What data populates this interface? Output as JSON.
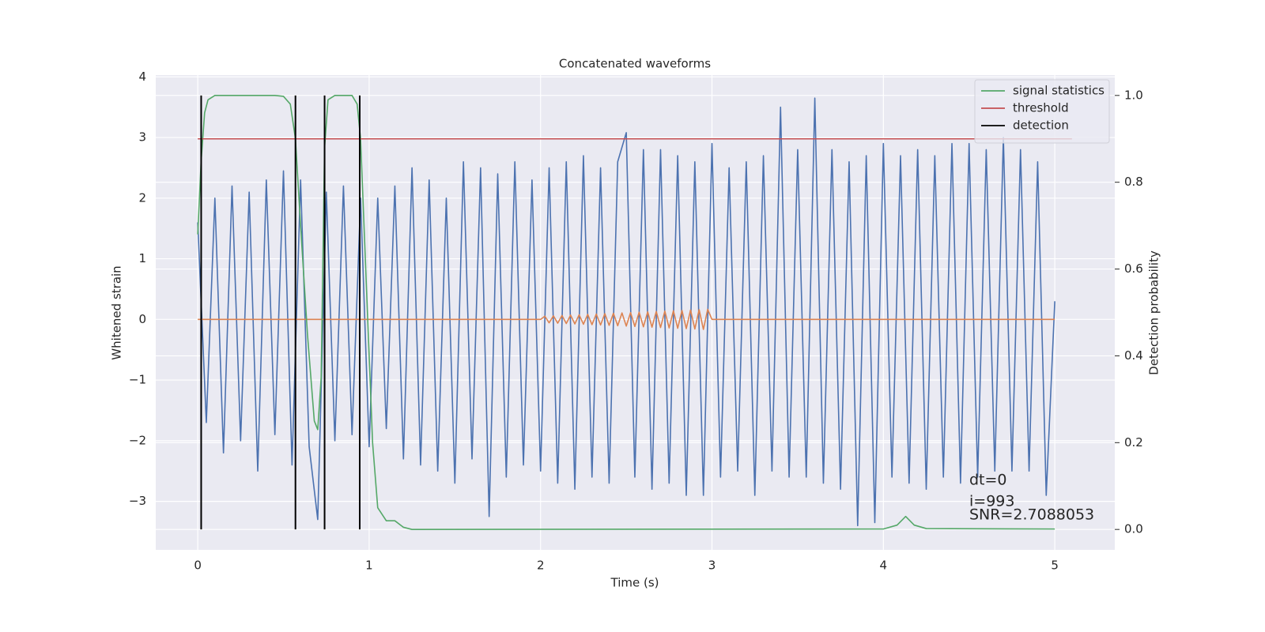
{
  "chart_data": {
    "type": "line",
    "title": "Concatenated waveforms",
    "xlabel": "Time (s)",
    "ylabel": "Whitened strain",
    "y2label": "Detection probability",
    "xlim": [
      -0.245,
      5.35
    ],
    "ylim": [
      -3.8,
      4.03
    ],
    "y2lim": [
      -0.047,
      1.047
    ],
    "xticks": [
      0,
      1,
      2,
      3,
      4,
      5
    ],
    "yticks": [
      {
        "value": -3,
        "label": "−3"
      },
      {
        "value": -2,
        "label": "−2"
      },
      {
        "value": -1,
        "label": "−1"
      },
      0,
      1,
      2,
      3,
      4
    ],
    "y2ticks": [
      {
        "value": 0,
        "label": "0.0"
      },
      0.2,
      0.4,
      0.6,
      0.8,
      {
        "value": 1,
        "label": "1.0"
      }
    ],
    "grid": true,
    "legend": "upper right",
    "annotations": [
      "dt=0",
      "i=993",
      "SNR=2.7088053"
    ],
    "series": [
      {
        "color": "#4c72b0",
        "x": [
          0,
          0.05,
          0.1,
          0.15,
          0.2,
          0.25,
          0.3,
          0.35,
          0.4,
          0.45,
          0.5,
          0.55,
          0.6,
          0.65,
          0.7,
          0.75,
          0.8,
          0.85,
          0.9,
          0.95,
          1.0,
          1.05,
          1.1,
          1.15,
          1.2,
          1.25,
          1.3,
          1.35,
          1.4,
          1.45,
          1.5,
          1.55,
          1.6,
          1.65,
          1.7,
          1.75,
          1.8,
          1.85,
          1.9,
          1.95,
          2.0,
          2.05,
          2.1,
          2.15,
          2.2,
          2.25,
          2.3,
          2.35,
          2.4,
          2.45,
          2.5,
          2.55,
          2.6,
          2.65,
          2.7,
          2.75,
          2.8,
          2.85,
          2.9,
          2.95,
          3.0,
          3.05,
          3.1,
          3.15,
          3.2,
          3.25,
          3.3,
          3.35,
          3.4,
          3.45,
          3.5,
          3.55,
          3.6,
          3.65,
          3.7,
          3.75,
          3.8,
          3.85,
          3.9,
          3.95,
          4.0,
          4.05,
          4.1,
          4.15,
          4.2,
          4.25,
          4.3,
          4.35,
          4.4,
          4.45,
          4.5,
          4.55,
          4.6,
          4.65,
          4.7,
          4.75,
          4.8,
          4.85,
          4.9,
          4.95,
          5.0
        ],
        "values": [
          1.6,
          -1.7,
          2.0,
          -2.2,
          2.2,
          -2.0,
          2.1,
          -2.5,
          2.3,
          -1.9,
          2.45,
          -2.4,
          2.3,
          -2.1,
          -3.3,
          2.1,
          -2.0,
          2.2,
          -1.9,
          2.0,
          -2.1,
          2.0,
          -1.8,
          2.2,
          -2.3,
          2.5,
          -2.4,
          2.3,
          -2.5,
          2.0,
          -2.7,
          2.6,
          -2.3,
          2.5,
          -3.25,
          2.4,
          -2.6,
          2.6,
          -2.4,
          2.3,
          -2.5,
          2.5,
          -2.7,
          2.6,
          -2.8,
          2.7,
          -2.6,
          2.5,
          -2.7,
          2.6,
          3.08,
          -2.6,
          2.8,
          -2.8,
          2.8,
          -2.7,
          2.7,
          -2.9,
          2.6,
          -2.9,
          2.9,
          -2.6,
          2.5,
          -2.5,
          2.6,
          -2.9,
          2.7,
          -2.5,
          3.5,
          -2.6,
          2.8,
          -2.6,
          3.65,
          -2.7,
          2.8,
          -2.8,
          2.6,
          -3.4,
          2.7,
          -3.35,
          2.9,
          -2.6,
          2.7,
          -2.7,
          2.8,
          -2.8,
          2.7,
          -2.6,
          2.9,
          -2.7,
          2.9,
          -2.6,
          2.8,
          -2.5,
          3.0,
          -2.5,
          2.8,
          -2.5,
          2.6,
          -2.9,
          0.3
        ]
      },
      {
        "color": "#dd8452",
        "x": [
          0,
          2.0,
          2.025,
          2.05,
          2.075,
          2.1,
          2.125,
          2.15,
          2.175,
          2.2,
          2.225,
          2.25,
          2.275,
          2.3,
          2.325,
          2.35,
          2.375,
          2.4,
          2.425,
          2.45,
          2.475,
          2.5,
          2.525,
          2.55,
          2.575,
          2.6,
          2.625,
          2.65,
          2.675,
          2.7,
          2.725,
          2.75,
          2.775,
          2.8,
          2.825,
          2.85,
          2.875,
          2.9,
          2.925,
          2.95,
          2.975,
          3.0,
          5.0
        ],
        "values": [
          0,
          0,
          0.053,
          -0.056,
          0.059,
          -0.062,
          0.065,
          -0.068,
          0.071,
          -0.074,
          0.077,
          -0.08,
          0.083,
          -0.086,
          0.089,
          -0.092,
          0.095,
          -0.098,
          0.101,
          -0.104,
          0.107,
          -0.11,
          0.113,
          -0.116,
          0.119,
          -0.122,
          0.125,
          -0.128,
          0.131,
          -0.134,
          0.137,
          -0.14,
          0.143,
          -0.146,
          0.149,
          -0.152,
          0.155,
          -0.158,
          0.161,
          -0.164,
          0.167,
          0,
          0
        ]
      },
      {
        "name": "signal statistics",
        "color": "#55a868",
        "axis": "y2",
        "x": [
          0,
          0.02,
          0.04,
          0.06,
          0.1,
          0.2,
          0.45,
          0.5,
          0.54,
          0.57,
          0.6,
          0.64,
          0.68,
          0.7,
          0.72,
          0.74,
          0.76,
          0.8,
          0.9,
          0.93,
          0.95,
          0.98,
          1.02,
          1.05,
          1.1,
          1.15,
          1.2,
          1.25,
          4.0,
          4.08,
          4.13,
          4.18,
          4.25,
          5.0
        ],
        "values": [
          0.68,
          0.85,
          0.96,
          0.99,
          1.0,
          1.0,
          1.0,
          0.998,
          0.98,
          0.9,
          0.7,
          0.45,
          0.25,
          0.23,
          0.35,
          0.88,
          0.99,
          1.0,
          1.0,
          0.98,
          0.9,
          0.6,
          0.2,
          0.05,
          0.02,
          0.02,
          0.005,
          0.0,
          0.001,
          0.01,
          0.03,
          0.01,
          0.002,
          0.001
        ]
      },
      {
        "name": "threshold",
        "color": "#c44e52",
        "axis": "y2",
        "x": [
          0,
          5.1
        ],
        "values": [
          0.9,
          0.9
        ]
      },
      {
        "name": "detection",
        "color": "#000000",
        "axis": "y2",
        "type": "vlines",
        "x": [
          0.02,
          0.57,
          0.74,
          0.945
        ],
        "ymin": 0,
        "ymax": 1
      }
    ]
  }
}
